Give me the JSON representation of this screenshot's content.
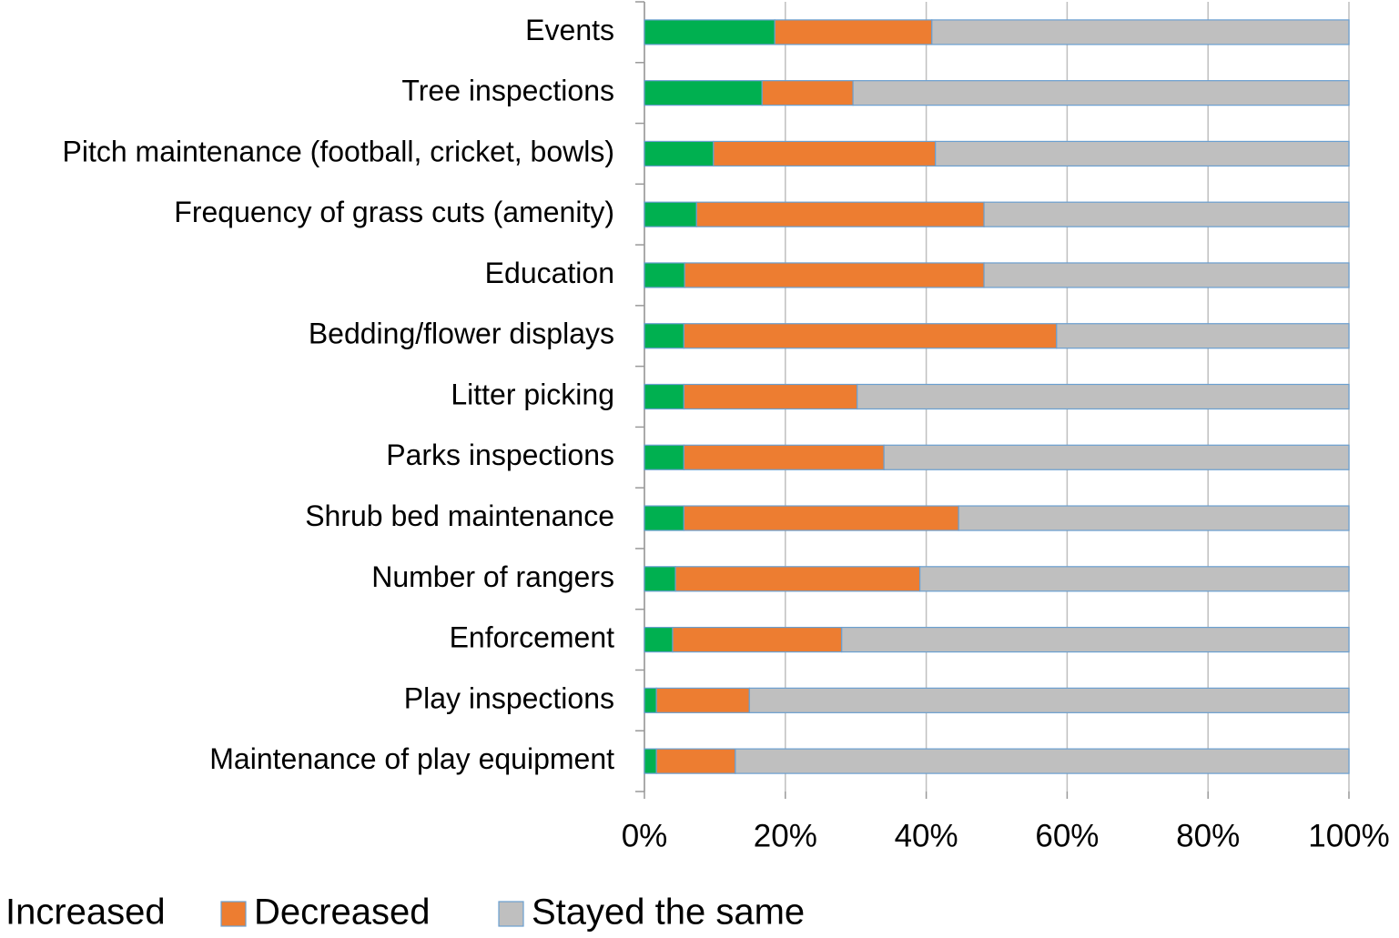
{
  "chart_data": {
    "type": "stacked_barh",
    "categories": [
      "Events",
      "Tree inspections",
      "Pitch maintenance (football, cricket, bowls)",
      "Frequency of grass cuts (amenity)",
      "Education",
      "Bedding/flower displays",
      "Litter picking",
      "Parks inspections",
      "Shrub bed maintenance",
      "Number of rangers",
      "Enforcement",
      "Play inspections",
      "Maintenance of play equipment"
    ],
    "series": [
      {
        "name": "Increased",
        "color": "#00b050",
        "values": [
          18.5,
          16.7,
          9.8,
          7.4,
          5.7,
          5.6,
          5.6,
          5.6,
          5.6,
          4.4,
          4.0,
          1.7,
          1.7
        ]
      },
      {
        "name": "Decreased",
        "color": "#ed7d31",
        "values": [
          22.3,
          12.9,
          31.5,
          40.8,
          42.5,
          52.9,
          24.6,
          28.4,
          39.0,
          34.7,
          24.0,
          13.2,
          11.2
        ]
      },
      {
        "name": "Stayed the same",
        "color": "#bfbfbf",
        "values": [
          59.2,
          70.4,
          58.7,
          51.8,
          51.8,
          41.5,
          69.8,
          66.0,
          55.4,
          60.9,
          72.0,
          85.1,
          87.1
        ]
      }
    ],
    "xlim": [
      0,
      100
    ],
    "xticks": [
      {
        "value": 0,
        "label": "0%"
      },
      {
        "value": 20,
        "label": "20%"
      },
      {
        "value": 40,
        "label": "40%"
      },
      {
        "value": 60,
        "label": "60%"
      },
      {
        "value": 80,
        "label": "80%"
      },
      {
        "value": 100,
        "label": "100%"
      }
    ],
    "grid": true,
    "legend": "bottom"
  }
}
